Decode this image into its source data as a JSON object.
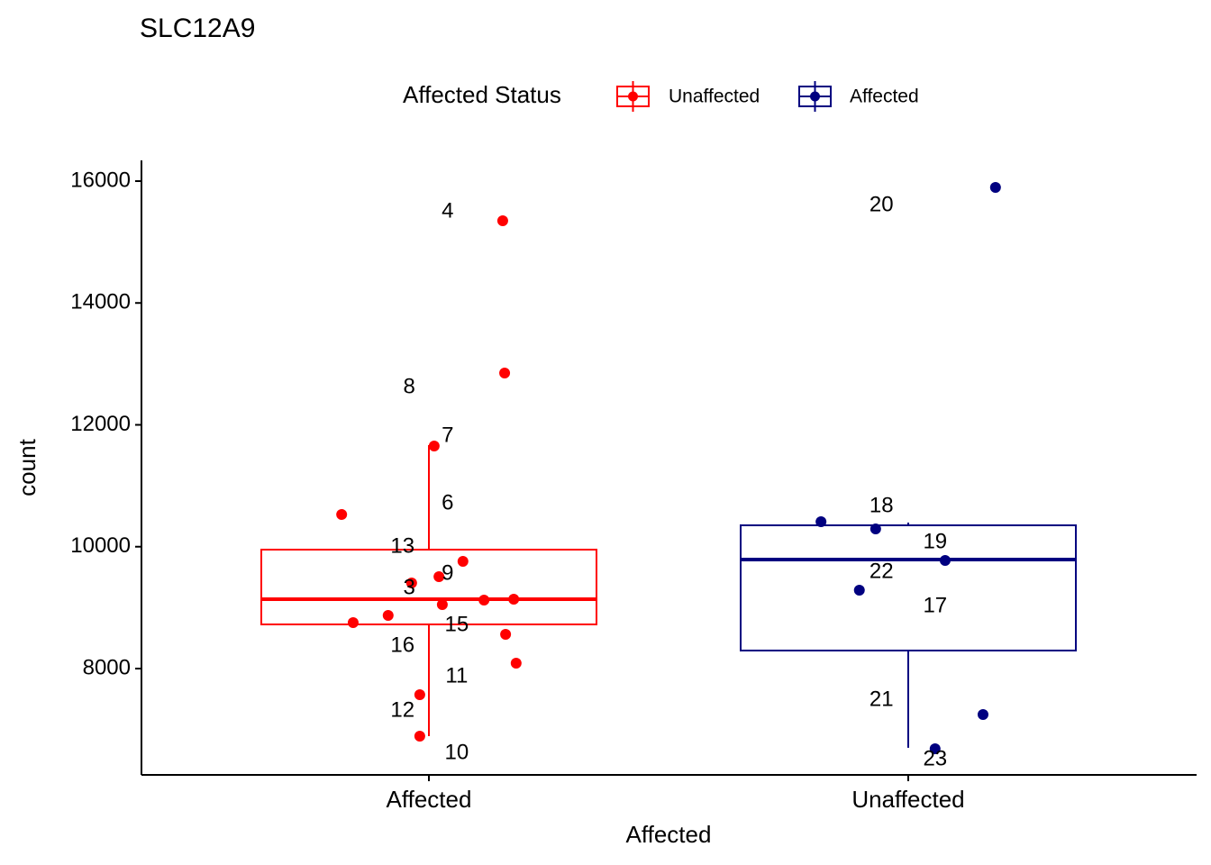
{
  "chart_data": {
    "type": "box",
    "title": "SLC12A9",
    "x_label": "Affected",
    "y_label": "count",
    "legend_title": "Affected Status",
    "legend_position": "top",
    "categories": [
      "Affected",
      "Unaffected"
    ],
    "ylim": [
      6255,
      16340
    ],
    "yticks": [
      8000,
      10000,
      12000,
      14000,
      16000
    ],
    "grid": false,
    "series": [
      {
        "name": "Unaffected",
        "color": "#ff0000",
        "category": 0,
        "whisker_low": 6891,
        "q1": 8725,
        "median": 9139,
        "q3": 9952,
        "whisker_high": 11667,
        "points": {
          "x": [
            1.154,
            1.158,
            1.011,
            0.818,
            1.071,
            1.021,
            0.964,
            1.177,
            1.115,
            1.028,
            0.915,
            0.842,
            1.16,
            1.182,
            0.981,
            0.981
          ],
          "y": [
            15349,
            12850,
            11653,
            10529,
            9760,
            9508,
            9405,
            9139,
            9124,
            9050,
            8872,
            8754,
            8562,
            8089,
            7571,
            6891
          ]
        },
        "labels": {
          "text": [
            "4",
            "8",
            "7",
            "6",
            "13",
            "9",
            "3",
            "15",
            "16",
            "11",
            "12",
            "10"
          ],
          "x": [
            1.039,
            0.959,
            1.039,
            1.039,
            0.945,
            1.039,
            0.959,
            1.058,
            0.945,
            1.058,
            0.945,
            1.058
          ],
          "y": [
            15497,
            12614,
            11815,
            10706,
            9996,
            9553,
            9316,
            8710,
            8370,
            7867,
            7305,
            6610
          ]
        }
      },
      {
        "name": "Affected",
        "color": "#000080",
        "category": 1,
        "whisker_low": 6700,
        "q1": 8296,
        "median": 9790,
        "q3": 10351,
        "whisker_high": 10396,
        "points": {
          "x": [
            2.182,
            1.818,
            1.932,
            2.077,
            1.898,
            2.156,
            2.056
          ],
          "y": [
            15896,
            10410,
            10292,
            9774,
            9286,
            7246,
            6684
          ]
        },
        "labels": {
          "text": [
            "20",
            "18",
            "19",
            "22",
            "17",
            "21",
            "23"
          ],
          "x": [
            1.944,
            1.944,
            2.056,
            1.944,
            2.056,
            1.944,
            2.056
          ],
          "y": [
            15601,
            10662,
            10070,
            9582,
            9020,
            7482,
            6506
          ]
        }
      }
    ]
  }
}
